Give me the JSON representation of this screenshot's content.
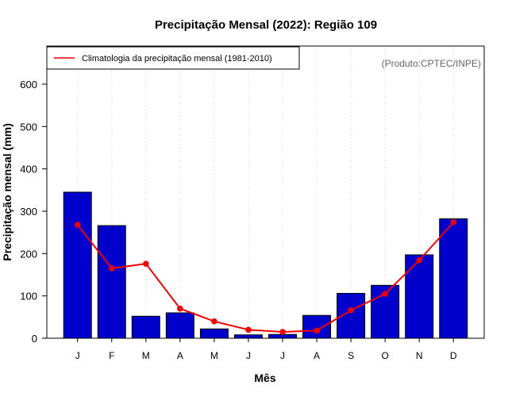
{
  "chart_data": {
    "type": "bar",
    "title": "Precipitação Mensal (2022): Região 109",
    "xlabel": "Mês",
    "ylabel": "Precipitação mensal (mm)",
    "ylim": [
      0,
      690
    ],
    "yticks": [
      0,
      100,
      200,
      300,
      400,
      500,
      600
    ],
    "grid": "vertical dotted",
    "categories": [
      "J",
      "F",
      "M",
      "A",
      "M",
      "J",
      "J",
      "A",
      "S",
      "O",
      "N",
      "D"
    ],
    "series": [
      {
        "name": "2022",
        "kind": "bar",
        "color": "#0000cc",
        "values": [
          345,
          266,
          52,
          60,
          22,
          8,
          9,
          54,
          106,
          125,
          197,
          282
        ]
      },
      {
        "name": "Climatologia da precipitação mensal (1981-2010)",
        "kind": "line",
        "color": "#ee0000",
        "values": [
          268,
          165,
          176,
          70,
          40,
          20,
          15,
          18,
          66,
          105,
          184,
          274
        ]
      }
    ],
    "legend": {
      "position": "top-left",
      "entries": [
        "Climatologia da precipitação mensal (1981-2010)"
      ]
    },
    "annotation": "(Produto:CPTEC/INPE)"
  }
}
